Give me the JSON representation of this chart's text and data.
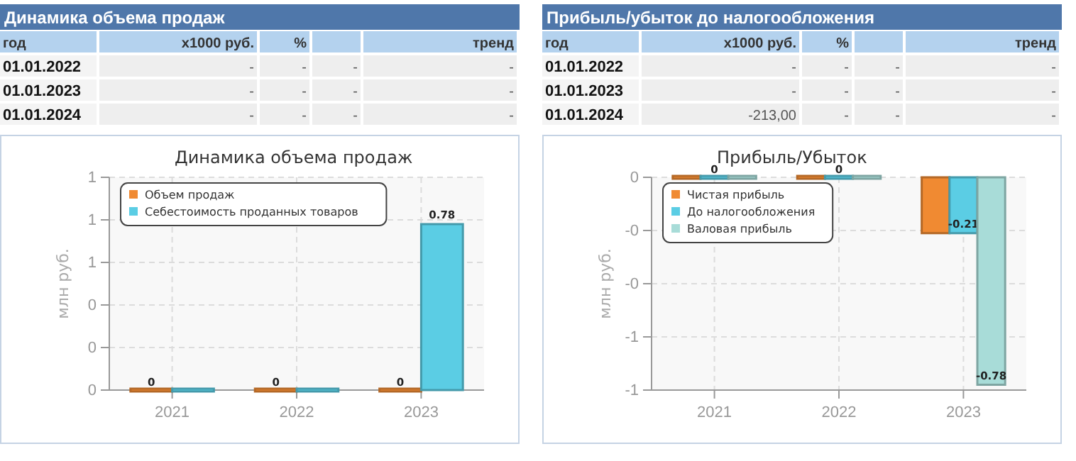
{
  "chart_data": [
    {
      "type": "other",
      "title": "Динамика объема продаж",
      "categories": [
        "год",
        "x1000 руб.",
        "%",
        null,
        "тренд"
      ],
      "annotations": [
        "01.01.2022",
        "-",
        "-",
        "-",
        "-",
        "01.01.2023",
        "-",
        "-",
        "-",
        "-",
        "01.01.2024",
        "-",
        "-",
        "-",
        "-"
      ]
    },
    {
      "type": "other",
      "title": "Прибыль/убыток до налогообложения",
      "categories": [
        "год",
        "x1000 руб.",
        "%",
        null,
        "тренд"
      ],
      "annotations": [
        "01.01.2022",
        "-",
        "-",
        "-",
        "-",
        "01.01.2023",
        "-",
        "-",
        "-",
        "-",
        "01.01.2024",
        "-213,00",
        "-",
        "-",
        "-"
      ]
    },
    {
      "type": "bar",
      "title": "Динамика объема продаж",
      "ylabel": "млн руб.",
      "categories": [
        "2021",
        "2022",
        "2023"
      ],
      "series": [
        {
          "name": "Объем продаж",
          "color": "#f08a32",
          "values": [
            0,
            0,
            0
          ],
          "value_labels": [
            "0",
            "0",
            "0"
          ]
        },
        {
          "name": "Себестоимость проданных товаров",
          "color": "#5bcde4",
          "values": [
            0,
            0,
            0.78
          ],
          "value_labels": [
            null,
            null,
            "0.78"
          ]
        }
      ],
      "ylim": [
        0,
        1
      ],
      "yticks": [
        {
          "value": 0,
          "label": "0"
        },
        {
          "value": 0.2,
          "label": "0"
        },
        {
          "value": 0.4,
          "label": "0"
        },
        {
          "value": 0.6,
          "label": "1"
        },
        {
          "value": 0.8,
          "label": "1"
        },
        {
          "value": 1,
          "label": "1"
        }
      ],
      "grid": true,
      "legend": "top left"
    },
    {
      "type": "bar",
      "title": "Прибыль/Убыток",
      "ylabel": "млн руб.",
      "categories": [
        "2021",
        "2022",
        "2023"
      ],
      "series": [
        {
          "name": "Чистая прибыль",
          "color": "#f08a32",
          "values": [
            0,
            0,
            -0.21
          ],
          "value_labels": [
            null,
            null,
            null
          ]
        },
        {
          "name": "До налогообложения",
          "color": "#5bcde4",
          "values": [
            0,
            0,
            -0.21
          ],
          "value_labels": [
            "0",
            "0",
            "-0.21"
          ]
        },
        {
          "name": "Валовая прибыль",
          "color": "#a8dcd8",
          "values": [
            0,
            0,
            -0.78
          ],
          "value_labels": [
            null,
            null,
            "-0.78"
          ]
        }
      ],
      "ylim": [
        -0.8,
        0
      ],
      "yticks": [
        {
          "value": 0,
          "label": "0"
        },
        {
          "value": -0.2,
          "label": "-0"
        },
        {
          "value": -0.4,
          "label": "-0"
        },
        {
          "value": -0.6,
          "label": "-1"
        },
        {
          "value": -0.8,
          "label": "-1"
        }
      ],
      "grid": true,
      "legend": "top left"
    }
  ]
}
